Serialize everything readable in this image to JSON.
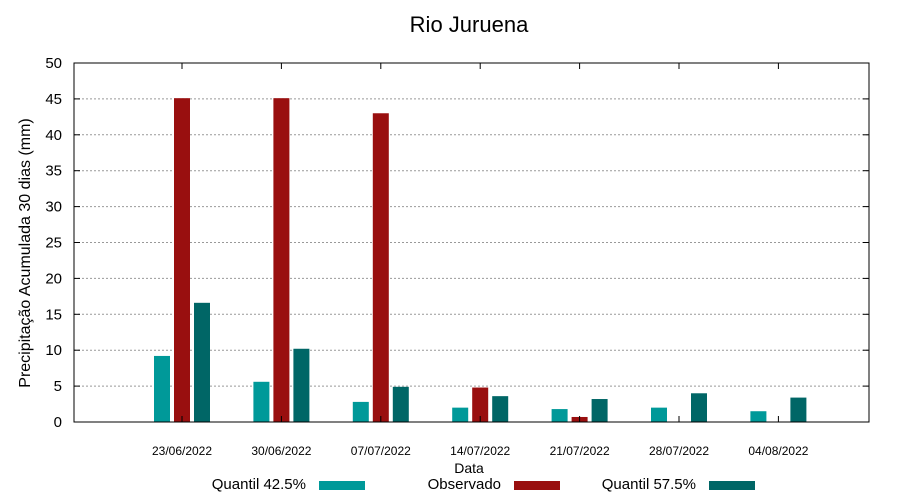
{
  "chart_data": {
    "type": "bar",
    "title": "Rio Juruena",
    "xlabel": "Data",
    "ylabel": "Precipitação Acumulada 30 dias (mm)",
    "ylim": [
      0,
      50
    ],
    "yticks": [
      0,
      5,
      10,
      15,
      20,
      25,
      30,
      35,
      40,
      45,
      50
    ],
    "categories": [
      "23/06/2022",
      "30/06/2022",
      "07/07/2022",
      "14/07/2022",
      "21/07/2022",
      "28/07/2022",
      "04/08/2022"
    ],
    "series": [
      {
        "name": "Quantil 42.5%",
        "color": "#009999",
        "values": [
          9.2,
          5.6,
          2.8,
          2.0,
          1.8,
          2.0,
          1.5
        ]
      },
      {
        "name": "Observado",
        "color": "#990f0f",
        "values": [
          45.1,
          45.1,
          43.0,
          4.8,
          0.7,
          null,
          null
        ]
      },
      {
        "name": "Quantil 57.5%",
        "color": "#006666",
        "values": [
          16.6,
          10.2,
          4.9,
          3.6,
          3.2,
          4.0,
          3.4
        ]
      }
    ],
    "grid": true,
    "legend_position": "bottom"
  }
}
